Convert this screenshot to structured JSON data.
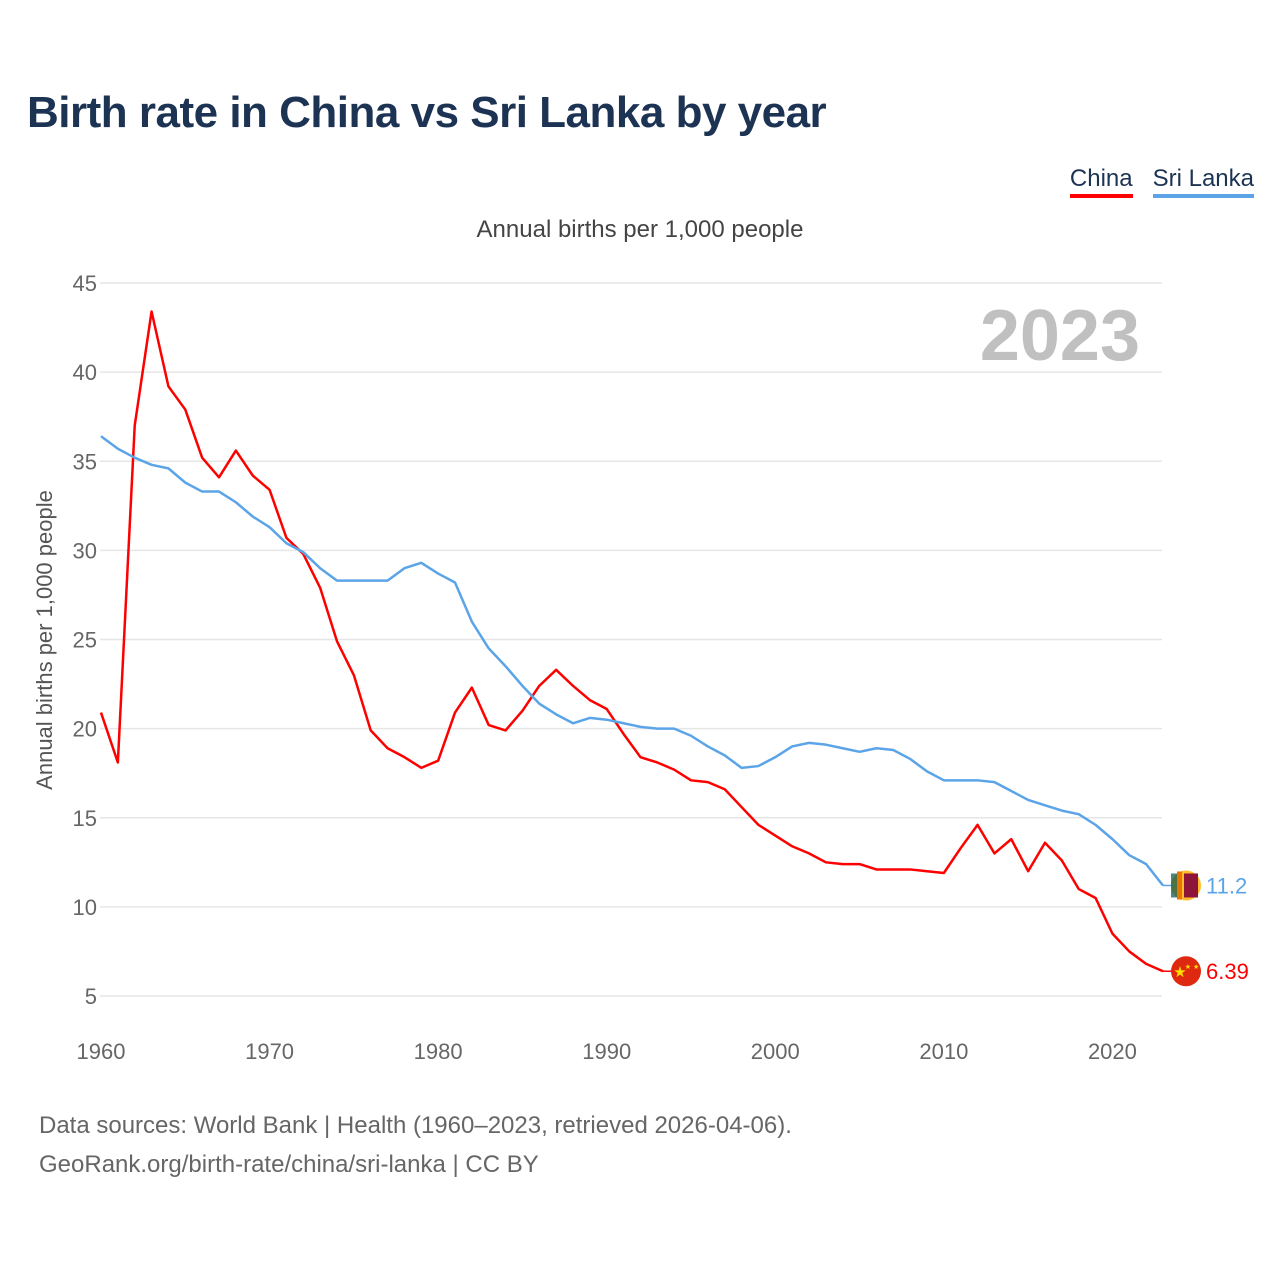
{
  "title": "Birth rate in China vs Sri Lanka by year",
  "subtitle": "Annual births per 1,000 people",
  "year_watermark": "2023",
  "footer": {
    "line1": "Data sources: World Bank | Health (1960–2023, retrieved 2026-04-06).",
    "line2": "GeoRank.org/birth-rate/china/sri-lanka | CC BY"
  },
  "chart_data": {
    "type": "line",
    "title": "Birth rate in China vs Sri Lanka by year",
    "xlabel": "",
    "ylabel": "Annual births per 1,000 people",
    "xlim": [
      1960,
      2023
    ],
    "ylim": [
      5,
      45
    ],
    "x_ticks": [
      1960,
      1970,
      1980,
      1990,
      2000,
      2010,
      2020
    ],
    "y_ticks": [
      5,
      10,
      15,
      20,
      25,
      30,
      35,
      40,
      45
    ],
    "grid": true,
    "legend_placement": "top-right",
    "series": [
      {
        "name": "China",
        "color": "#ff0000",
        "end_label": "6.39",
        "flag": "china-flag",
        "values": [
          20.9,
          18.1,
          37.0,
          43.4,
          39.2,
          37.9,
          35.2,
          34.1,
          35.6,
          34.2,
          33.4,
          30.7,
          29.8,
          27.9,
          24.9,
          23.0,
          19.9,
          18.9,
          18.4,
          17.8,
          18.2,
          20.9,
          22.3,
          20.2,
          19.9,
          21.0,
          22.4,
          23.3,
          22.4,
          21.6,
          21.1,
          19.7,
          18.4,
          18.1,
          17.7,
          17.1,
          17.0,
          16.6,
          15.6,
          14.6,
          14.0,
          13.4,
          13.0,
          12.5,
          12.4,
          12.4,
          12.1,
          12.1,
          12.1,
          12.0,
          11.9,
          13.3,
          14.6,
          13.0,
          13.8,
          12.0,
          13.6,
          12.6,
          11.0,
          10.5,
          8.5,
          7.5,
          6.8,
          6.39
        ]
      },
      {
        "name": "Sri Lanka",
        "color": "#5ba4e8",
        "end_label": "11.2",
        "flag": "sri-lanka-flag",
        "values": [
          36.4,
          35.7,
          35.2,
          34.8,
          34.6,
          33.8,
          33.3,
          33.3,
          32.7,
          31.9,
          31.3,
          30.4,
          29.9,
          29.0,
          28.3,
          28.3,
          28.3,
          28.3,
          29.0,
          29.3,
          28.7,
          28.2,
          26.0,
          24.5,
          23.5,
          22.4,
          21.4,
          20.8,
          20.3,
          20.6,
          20.5,
          20.3,
          20.1,
          20.0,
          20.0,
          19.6,
          19.0,
          18.5,
          17.8,
          17.9,
          18.4,
          19.0,
          19.2,
          19.1,
          18.9,
          18.7,
          18.9,
          18.8,
          18.3,
          17.6,
          17.1,
          17.1,
          17.1,
          17.0,
          16.5,
          16.0,
          15.7,
          15.4,
          15.2,
          14.6,
          13.8,
          12.9,
          12.4,
          11.2
        ]
      }
    ]
  }
}
